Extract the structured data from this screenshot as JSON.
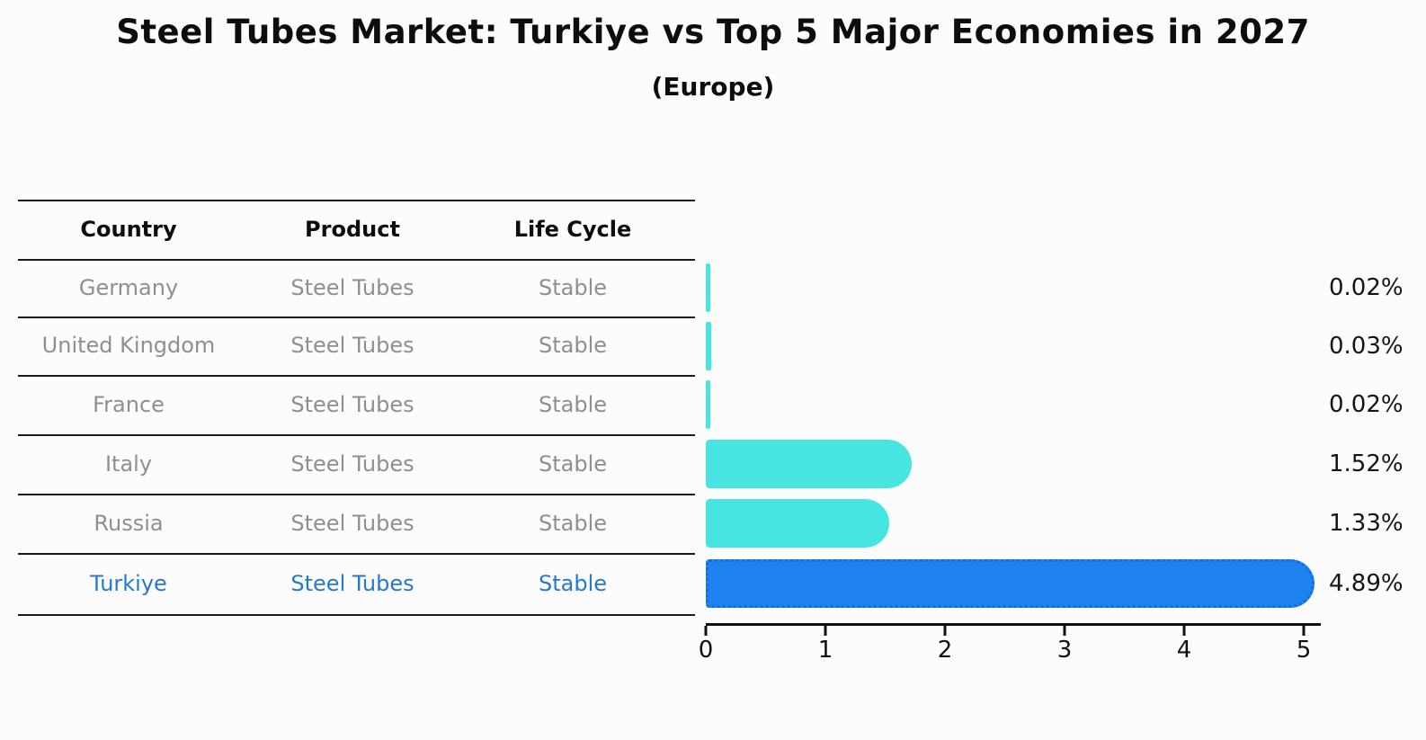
{
  "chart_data": {
    "type": "bar",
    "orientation": "horizontal",
    "title": "Steel Tubes Market: Turkiye vs Top 5 Major Economies in 2027",
    "subtitle": "(Europe)",
    "categories": [
      "Germany",
      "United Kingdom",
      "France",
      "Italy",
      "Russia",
      "Turkiye"
    ],
    "values": [
      0.02,
      0.03,
      0.02,
      1.52,
      1.33,
      4.89
    ],
    "value_labels": [
      "0.02%",
      "0.03%",
      "0.02%",
      "1.52%",
      "1.33%",
      "4.89%"
    ],
    "xlim": [
      0,
      5
    ],
    "x_ticks": [
      "0",
      "1",
      "2",
      "3",
      "4",
      "5"
    ],
    "grid": false,
    "legend": "none",
    "highlight_index": 5,
    "bar_color": "#47e5e1",
    "highlight_bar_color": "#1e82f0",
    "highlight_bar_edge_color": "#0e6fde",
    "highlight_text_color": "#2579cd"
  },
  "table": {
    "columns": [
      "Country",
      "Product",
      "Life Cycle"
    ],
    "rows": [
      {
        "country": "Germany",
        "product": "Steel Tubes",
        "life_cycle": "Stable",
        "highlight": false
      },
      {
        "country": "United Kingdom",
        "product": "Steel Tubes",
        "life_cycle": "Stable",
        "highlight": false
      },
      {
        "country": "France",
        "product": "Steel Tubes",
        "life_cycle": "Stable",
        "highlight": false
      },
      {
        "country": "Italy",
        "product": "Steel Tubes",
        "life_cycle": "Stable",
        "highlight": false
      },
      {
        "country": "Russia",
        "product": "Steel Tubes",
        "life_cycle": "Stable",
        "highlight": false
      },
      {
        "country": "Turkiye",
        "product": "Steel Tubes",
        "life_cycle": "Stable",
        "highlight": true
      }
    ]
  }
}
